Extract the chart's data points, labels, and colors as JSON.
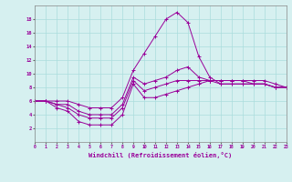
{
  "title": "",
  "xlabel": "Windchill (Refroidissement éolien,°C)",
  "ylabel": "",
  "background_color": "#d6f0f0",
  "line_color": "#990099",
  "xmin": 0,
  "xmax": 23,
  "ymin": 0,
  "ymax": 20,
  "yticks": [
    2,
    4,
    6,
    8,
    10,
    12,
    14,
    16,
    18
  ],
  "xticks": [
    0,
    1,
    2,
    3,
    4,
    5,
    6,
    7,
    8,
    9,
    10,
    11,
    12,
    13,
    14,
    15,
    16,
    17,
    18,
    19,
    20,
    21,
    22,
    23
  ],
  "series": [
    [
      6.0,
      6.0,
      5.0,
      4.5,
      3.0,
      2.5,
      2.5,
      2.5,
      4.0,
      8.5,
      6.5,
      6.5,
      7.0,
      7.5,
      8.0,
      8.5,
      9.0,
      8.5,
      8.5,
      8.5,
      8.5,
      8.5,
      8.0,
      8.0
    ],
    [
      6.0,
      6.0,
      5.5,
      5.0,
      4.0,
      3.5,
      3.5,
      3.5,
      5.0,
      9.0,
      7.5,
      8.0,
      8.5,
      9.0,
      9.0,
      9.0,
      9.0,
      9.0,
      9.0,
      9.0,
      8.5,
      8.5,
      8.0,
      8.0
    ],
    [
      6.0,
      6.0,
      5.5,
      5.5,
      4.5,
      4.0,
      4.0,
      4.0,
      5.5,
      9.5,
      8.5,
      9.0,
      9.5,
      10.5,
      11.0,
      9.5,
      9.0,
      9.0,
      9.0,
      9.0,
      9.0,
      9.0,
      8.5,
      8.0
    ],
    [
      6.0,
      6.0,
      6.0,
      6.0,
      5.5,
      5.0,
      5.0,
      5.0,
      6.5,
      10.5,
      13.0,
      15.5,
      18.0,
      19.0,
      17.5,
      12.5,
      9.5,
      8.5,
      8.5,
      8.5,
      8.5,
      8.5,
      8.0,
      8.0
    ]
  ]
}
